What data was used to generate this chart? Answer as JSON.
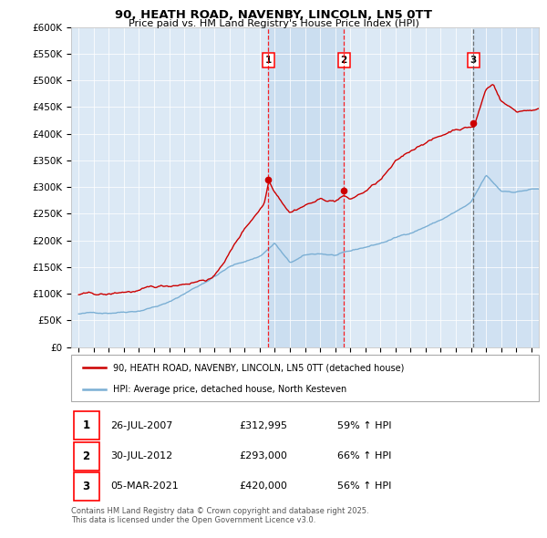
{
  "title": "90, HEATH ROAD, NAVENBY, LINCOLN, LN5 0TT",
  "subtitle": "Price paid vs. HM Land Registry's House Price Index (HPI)",
  "bg_color": "#dce9f5",
  "plot_bg_color": "#dce9f5",
  "red_color": "#cc0000",
  "blue_color": "#7bafd4",
  "highlight_bg": "#c8ddf0",
  "sale1_date": 2007.57,
  "sale2_date": 2012.58,
  "sale3_date": 2021.17,
  "sale1_price": 312995,
  "sale2_price": 293000,
  "sale3_price": 420000,
  "sale1_label": "26-JUL-2007",
  "sale2_label": "30-JUL-2012",
  "sale3_label": "05-MAR-2021",
  "sale1_pct": "59% ↑ HPI",
  "sale2_pct": "66% ↑ HPI",
  "sale3_pct": "56% ↑ HPI",
  "legend1": "90, HEATH ROAD, NAVENBY, LINCOLN, LN5 0TT (detached house)",
  "legend2": "HPI: Average price, detached house, North Kesteven",
  "footnote": "Contains HM Land Registry data © Crown copyright and database right 2025.\nThis data is licensed under the Open Government Licence v3.0.",
  "ylim": [
    0,
    600000
  ],
  "xlim": [
    1994.5,
    2025.5
  ]
}
